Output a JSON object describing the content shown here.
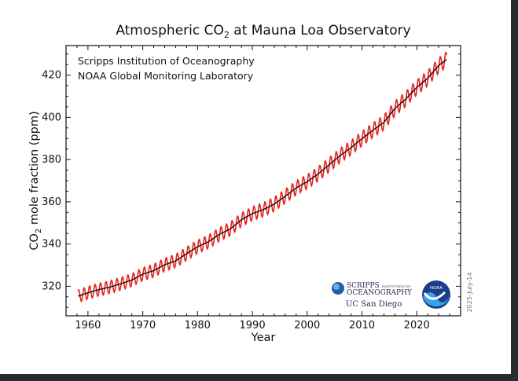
{
  "chart_data": {
    "type": "line",
    "title": "Atmospheric CO",
    "title_sub": "2",
    "title_suffix": " at Mauna Loa Observatory",
    "ylabel_prefix": "CO",
    "ylabel_sub": "2",
    "ylabel_suffix": " mole fraction (ppm)",
    "xlabel": "Year",
    "credits": [
      "Scripps Institution of Oceanography",
      "NOAA Global Monitoring Laboratory"
    ],
    "date_stamp": "2025-July-14",
    "xlim": [
      1956,
      2028
    ],
    "ylim": [
      306,
      434
    ],
    "x_ticks": [
      1960,
      1970,
      1980,
      1990,
      2000,
      2010,
      2020
    ],
    "y_ticks": [
      320,
      340,
      360,
      380,
      400,
      420
    ],
    "grid": false,
    "seasonal_amplitude_ppm": 3.3,
    "series": [
      {
        "color": "#e8211d",
        "style": "monthly-mean",
        "x": [
          1958.2,
          1960,
          1962,
          1964,
          1966,
          1968,
          1970,
          1972,
          1974,
          1976,
          1978,
          1980,
          1982,
          1984,
          1986,
          1988,
          1990,
          1992,
          1994,
          1996,
          1998,
          2000,
          2002,
          2004,
          2006,
          2008,
          2010,
          2012,
          2014,
          2016,
          2018,
          2020,
          2022,
          2024,
          2025.5
        ],
        "y": [
          315.3,
          316.9,
          318.4,
          319.6,
          321.2,
          322.9,
          325.7,
          327.4,
          330.2,
          332.0,
          335.4,
          338.7,
          341.1,
          344.6,
          347.2,
          351.5,
          354.4,
          356.3,
          358.9,
          362.6,
          366.6,
          369.5,
          373.2,
          377.5,
          381.9,
          385.6,
          389.9,
          393.9,
          397.6,
          404.2,
          408.7,
          414.2,
          418.5,
          424.6,
          427.5
        ]
      },
      {
        "color": "#111111",
        "style": "deseasonalized-trend",
        "x": [
          1958.2,
          1960,
          1962,
          1964,
          1966,
          1968,
          1970,
          1972,
          1974,
          1976,
          1978,
          1980,
          1982,
          1984,
          1986,
          1988,
          1990,
          1992,
          1994,
          1996,
          1998,
          2000,
          2002,
          2004,
          2006,
          2008,
          2010,
          2012,
          2014,
          2016,
          2018,
          2020,
          2022,
          2024,
          2025.5
        ],
        "y": [
          315.3,
          316.9,
          318.4,
          319.6,
          321.2,
          322.9,
          325.7,
          327.4,
          330.2,
          332.0,
          335.4,
          338.7,
          341.1,
          344.6,
          347.2,
          351.5,
          354.4,
          356.3,
          358.9,
          362.6,
          366.6,
          369.5,
          373.2,
          377.5,
          381.9,
          385.6,
          389.9,
          393.9,
          397.6,
          404.2,
          408.7,
          414.2,
          418.5,
          424.6,
          427.5
        ]
      }
    ]
  },
  "logos": {
    "scripps_line1": "SCRIPPS",
    "scripps_line1_small": "INSTITUTION OF",
    "scripps_line2": "OCEANOGRAPHY",
    "ucsd": "UC San Diego",
    "noaa": "NOAA"
  }
}
